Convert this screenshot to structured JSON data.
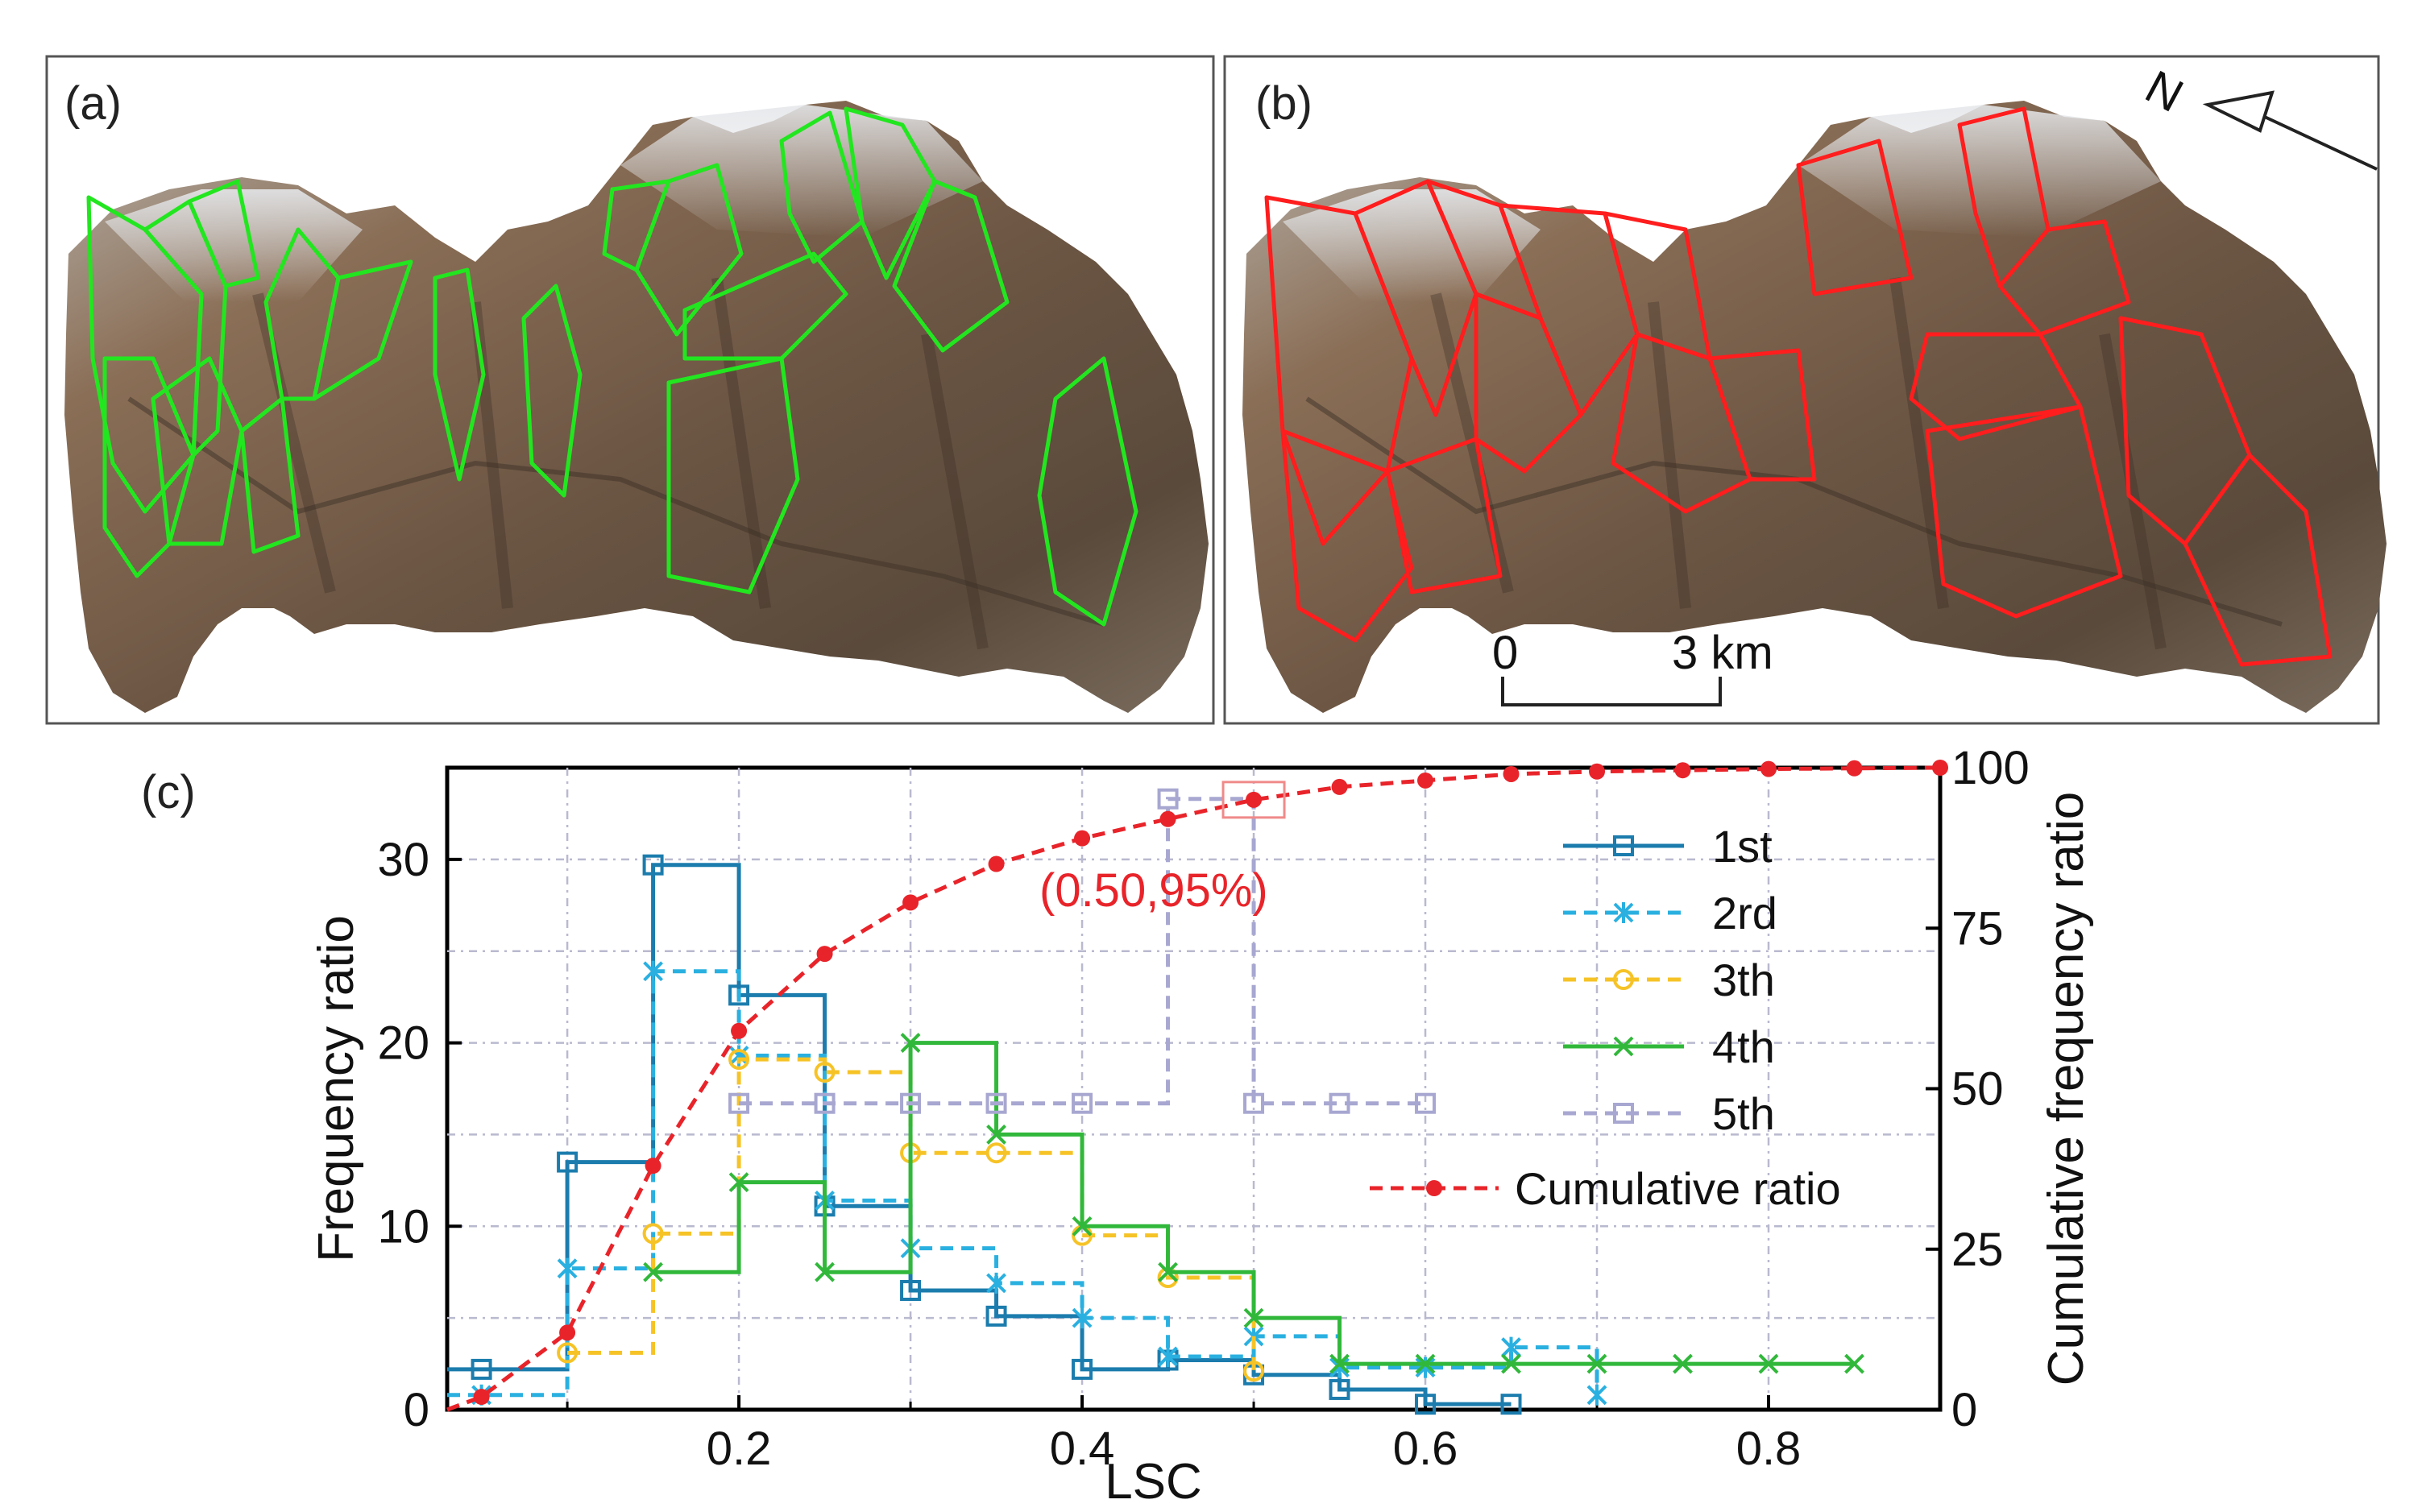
{
  "panels": {
    "a": {
      "label": "(a)",
      "outline_color": "#22e61f"
    },
    "b": {
      "label": "(b)",
      "outline_color": "#ff1d1d"
    },
    "c": {
      "label": "(c)"
    }
  },
  "north_arrow": {
    "label": "N"
  },
  "scale_bar": {
    "start_label": "0",
    "end_label": "3 km"
  },
  "chart_data": {
    "type": "line",
    "title": "",
    "xlabel": "LSC",
    "ylabel": "Frequency ratio",
    "y2label": "Cumulative frequency ratio",
    "xlim": [
      0.03,
      0.9
    ],
    "ylim": [
      0,
      35
    ],
    "y2lim": [
      0,
      100
    ],
    "xticks": [
      0.2,
      0.4,
      0.6,
      0.8
    ],
    "xtick_labels": [
      "0.2",
      "0.4",
      "0.6",
      "0.8"
    ],
    "yticks": [
      0,
      10,
      20,
      30
    ],
    "ytick_labels": [
      "0",
      "10",
      "20",
      "30"
    ],
    "y2ticks": [
      0,
      25,
      50,
      75,
      100
    ],
    "y2tick_labels": [
      "0",
      "25",
      "50",
      "75",
      "100"
    ],
    "grid": true,
    "legend_position": "right",
    "series": [
      {
        "name": "1st",
        "color": "#1b7cad",
        "dash": "solid",
        "marker": "square",
        "step": true,
        "x": [
          0.05,
          0.1,
          0.15,
          0.2,
          0.25,
          0.3,
          0.35,
          0.4,
          0.45,
          0.5,
          0.55,
          0.6,
          0.65
        ],
        "y": [
          2.2,
          13.5,
          29.7,
          22.6,
          11.1,
          6.5,
          5.1,
          2.2,
          2.7,
          1.9,
          1.1,
          0.3,
          0.3
        ]
      },
      {
        "name": "2rd",
        "color": "#2ab0e0",
        "dash": "dashed",
        "marker": "star",
        "step": true,
        "x": [
          0.05,
          0.1,
          0.15,
          0.2,
          0.25,
          0.3,
          0.35,
          0.4,
          0.45,
          0.5,
          0.55,
          0.6,
          0.65,
          0.7
        ],
        "y": [
          0.8,
          7.7,
          23.9,
          19.3,
          11.4,
          8.8,
          6.9,
          5.0,
          2.9,
          4.0,
          2.3,
          2.3,
          3.4,
          0.8
        ]
      },
      {
        "name": "3th",
        "color": "#f6c327",
        "dash": "dashed",
        "marker": "circle",
        "step": true,
        "x": [
          0.1,
          0.15,
          0.2,
          0.25,
          0.3,
          0.35,
          0.4,
          0.45,
          0.5
        ],
        "y": [
          3.1,
          9.6,
          19.1,
          18.4,
          14.0,
          14.0,
          9.5,
          7.2,
          2.1
        ]
      },
      {
        "name": "4th",
        "color": "#31b83b",
        "dash": "solid",
        "marker": "x",
        "step": true,
        "x": [
          0.15,
          0.2,
          0.25,
          0.3,
          0.35,
          0.4,
          0.45,
          0.5,
          0.55,
          0.6,
          0.65,
          0.7,
          0.75,
          0.8,
          0.85
        ],
        "y": [
          7.5,
          12.4,
          7.5,
          20.0,
          15.0,
          10.0,
          7.5,
          5.0,
          2.5,
          2.5,
          2.5,
          2.5,
          2.5,
          2.5,
          2.5
        ]
      },
      {
        "name": "5th",
        "color": "#a7a7d1",
        "dash": "dashed",
        "marker": "square",
        "step": true,
        "x": [
          0.2,
          0.25,
          0.3,
          0.35,
          0.4,
          0.45,
          0.5,
          0.55,
          0.6
        ],
        "y": [
          16.7,
          16.7,
          16.7,
          16.7,
          16.7,
          33.3,
          16.7,
          16.7,
          16.7
        ]
      },
      {
        "name": "Cumulative ratio",
        "color": "#e8242a",
        "dash": "dashed",
        "marker": "dot",
        "axis": "right",
        "step": false,
        "x": [
          0.05,
          0.1,
          0.15,
          0.2,
          0.25,
          0.3,
          0.35,
          0.4,
          0.45,
          0.5,
          0.55,
          0.6,
          0.65,
          0.7,
          0.75,
          0.8,
          0.85,
          0.9
        ],
        "y": [
          2,
          12,
          38,
          59,
          71,
          79,
          85,
          89,
          92,
          95,
          97,
          98,
          99,
          99.4,
          99.6,
          99.8,
          99.9,
          100
        ]
      }
    ],
    "annotation": {
      "text": "(0.50,95%)",
      "x": 0.5,
      "y2": 95,
      "color": "#e8242a"
    }
  }
}
